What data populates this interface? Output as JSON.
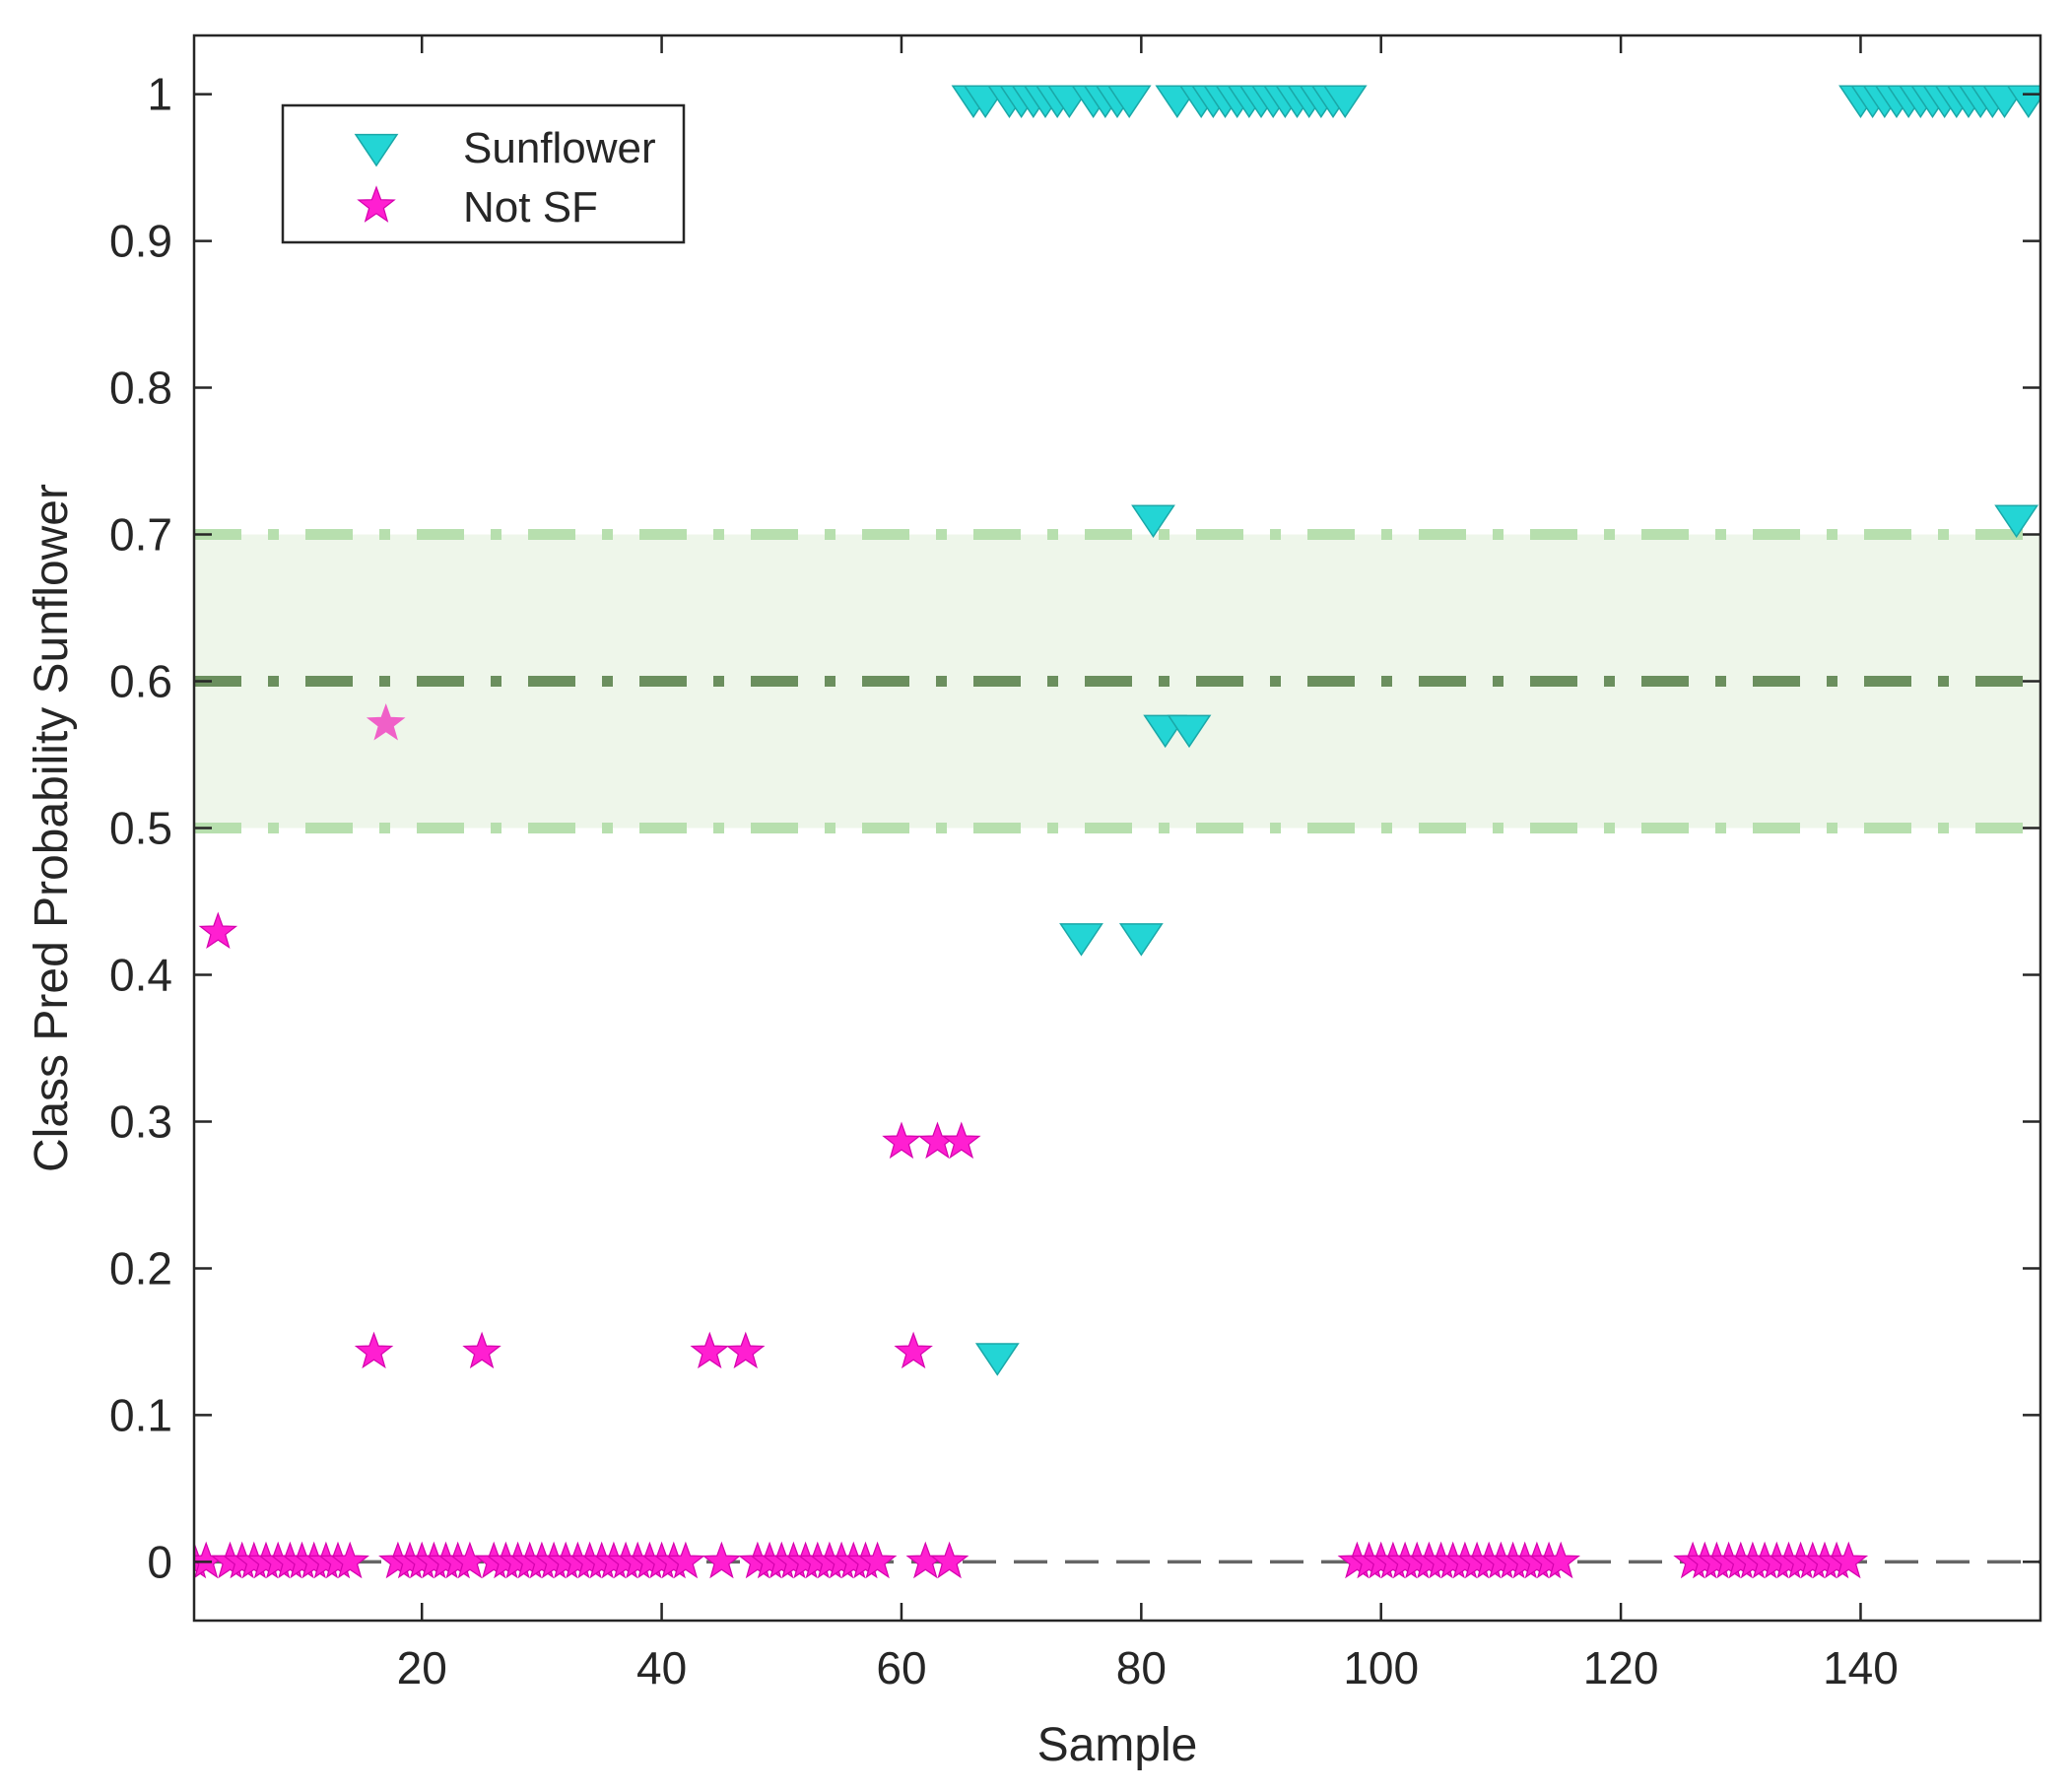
{
  "chart_data": {
    "type": "scatter",
    "title": "",
    "xlabel": "Sample",
    "ylabel": "Class Pred Probability Sunflower",
    "xlim": [
      1,
      155
    ],
    "ylim": [
      -0.04,
      1.04
    ],
    "xticks": [
      20,
      40,
      60,
      80,
      100,
      120,
      140
    ],
    "yticks": [
      0,
      0.1,
      0.2,
      0.3,
      0.4,
      0.5,
      0.6,
      0.7,
      0.8,
      0.9,
      1
    ],
    "ytick_labels": [
      "0",
      "0.1",
      "0.2",
      "0.3",
      "0.4",
      "0.5",
      "0.6",
      "0.7",
      "0.8",
      "0.9",
      "1"
    ],
    "grid": false,
    "legend_position": "top-left",
    "band": {
      "low": 0.5,
      "high": 0.7,
      "center": 0.6,
      "fill": "#eef6ea",
      "edge_color": "#b7dfae",
      "center_color": "#6b8f5e"
    },
    "zero_line": {
      "y": 0,
      "color": "#666666"
    },
    "series": [
      {
        "name": "Sunflower",
        "marker": "triangle-down",
        "color": "#23d5d5",
        "edge": "#1aa8a8",
        "points": [
          [
            66,
            1
          ],
          [
            67,
            1
          ],
          [
            69,
            1
          ],
          [
            70,
            1
          ],
          [
            71,
            1
          ],
          [
            72,
            1
          ],
          [
            73,
            1
          ],
          [
            74,
            1
          ],
          [
            76,
            1
          ],
          [
            77,
            1
          ],
          [
            78,
            1
          ],
          [
            79,
            1
          ],
          [
            83,
            1
          ],
          [
            85,
            1
          ],
          [
            86,
            1
          ],
          [
            87,
            1
          ],
          [
            88,
            1
          ],
          [
            89,
            1
          ],
          [
            90,
            1
          ],
          [
            91,
            1
          ],
          [
            92,
            1
          ],
          [
            93,
            1
          ],
          [
            94,
            1
          ],
          [
            95,
            1
          ],
          [
            96,
            1
          ],
          [
            97,
            1
          ],
          [
            140,
            1
          ],
          [
            141,
            1
          ],
          [
            142,
            1
          ],
          [
            143,
            1
          ],
          [
            144,
            1
          ],
          [
            145,
            1
          ],
          [
            146,
            1
          ],
          [
            147,
            1
          ],
          [
            148,
            1
          ],
          [
            149,
            1
          ],
          [
            150,
            1
          ],
          [
            151,
            1
          ],
          [
            152,
            1
          ],
          [
            154,
            1
          ],
          [
            81,
            0.714
          ],
          [
            153,
            0.714
          ],
          [
            82,
            0.571
          ],
          [
            84,
            0.571
          ],
          [
            75,
            0.429
          ],
          [
            80,
            0.429
          ],
          [
            68,
            0.143
          ]
        ]
      },
      {
        "name": "Not SF",
        "marker": "star",
        "color": "#ff1fd1",
        "edge": "#d400ad",
        "points": [
          [
            1,
            0
          ],
          [
            2,
            0
          ],
          [
            4,
            0
          ],
          [
            5,
            0
          ],
          [
            6,
            0
          ],
          [
            7,
            0
          ],
          [
            8,
            0
          ],
          [
            9,
            0
          ],
          [
            10,
            0
          ],
          [
            11,
            0
          ],
          [
            12,
            0
          ],
          [
            13,
            0
          ],
          [
            14,
            0
          ],
          [
            18,
            0
          ],
          [
            19,
            0
          ],
          [
            20,
            0
          ],
          [
            21,
            0
          ],
          [
            22,
            0
          ],
          [
            23,
            0
          ],
          [
            24,
            0
          ],
          [
            26,
            0
          ],
          [
            27,
            0
          ],
          [
            28,
            0
          ],
          [
            29,
            0
          ],
          [
            30,
            0
          ],
          [
            31,
            0
          ],
          [
            32,
            0
          ],
          [
            33,
            0
          ],
          [
            34,
            0
          ],
          [
            35,
            0
          ],
          [
            36,
            0
          ],
          [
            37,
            0
          ],
          [
            38,
            0
          ],
          [
            39,
            0
          ],
          [
            40,
            0
          ],
          [
            41,
            0
          ],
          [
            42,
            0
          ],
          [
            45,
            0
          ],
          [
            48,
            0
          ],
          [
            49,
            0
          ],
          [
            50,
            0
          ],
          [
            51,
            0
          ],
          [
            52,
            0
          ],
          [
            53,
            0
          ],
          [
            54,
            0
          ],
          [
            55,
            0
          ],
          [
            56,
            0
          ],
          [
            57,
            0
          ],
          [
            58,
            0
          ],
          [
            62,
            0
          ],
          [
            64,
            0
          ],
          [
            98,
            0
          ],
          [
            99,
            0
          ],
          [
            100,
            0
          ],
          [
            101,
            0
          ],
          [
            102,
            0
          ],
          [
            103,
            0
          ],
          [
            104,
            0
          ],
          [
            105,
            0
          ],
          [
            106,
            0
          ],
          [
            107,
            0
          ],
          [
            108,
            0
          ],
          [
            109,
            0
          ],
          [
            110,
            0
          ],
          [
            111,
            0
          ],
          [
            112,
            0
          ],
          [
            113,
            0
          ],
          [
            114,
            0
          ],
          [
            115,
            0
          ],
          [
            126,
            0
          ],
          [
            127,
            0
          ],
          [
            128,
            0
          ],
          [
            129,
            0
          ],
          [
            130,
            0
          ],
          [
            131,
            0
          ],
          [
            132,
            0
          ],
          [
            133,
            0
          ],
          [
            134,
            0
          ],
          [
            135,
            0
          ],
          [
            136,
            0
          ],
          [
            137,
            0
          ],
          [
            138,
            0
          ],
          [
            139,
            0
          ],
          [
            3,
            0.429
          ],
          [
            60,
            0.286
          ],
          [
            63,
            0.286
          ],
          [
            65,
            0.286
          ],
          [
            16,
            0.143
          ],
          [
            25,
            0.143
          ],
          [
            44,
            0.143
          ],
          [
            47,
            0.143
          ],
          [
            61,
            0.143
          ]
        ]
      }
    ],
    "highlighted_points": [
      {
        "series": "Not SF",
        "x": 17,
        "y": 0.571,
        "color": "#f060c8"
      }
    ]
  }
}
